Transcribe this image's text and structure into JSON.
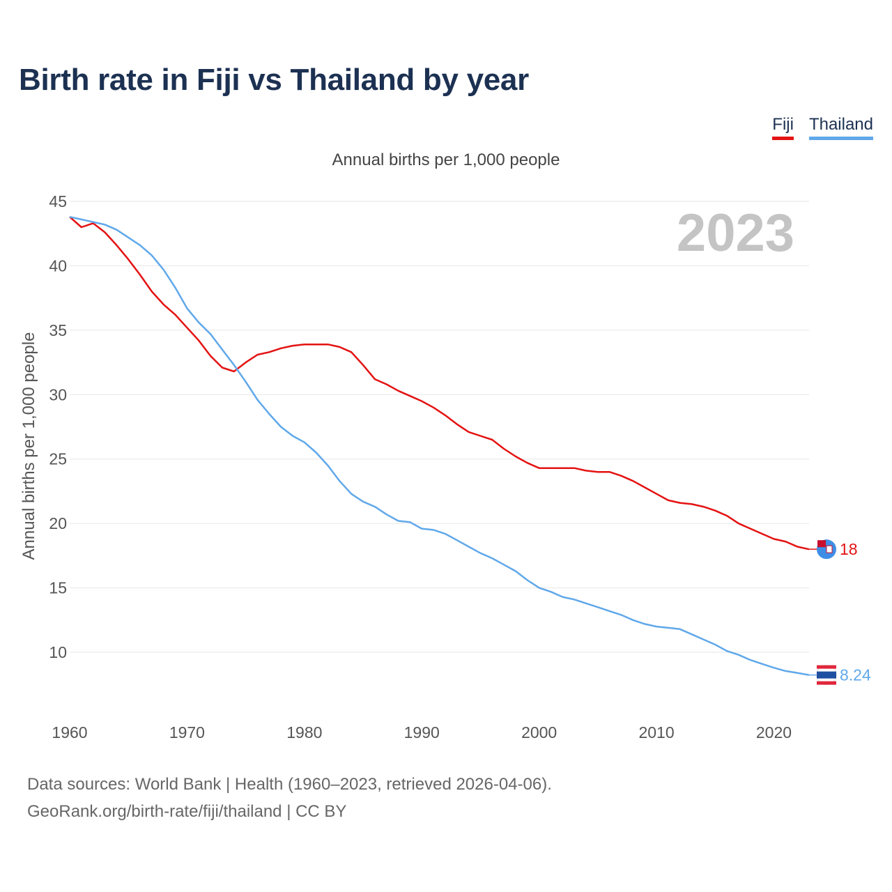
{
  "title": "Birth rate in Fiji vs Thailand by year",
  "subtitle": "Annual births per 1,000 people",
  "legend": [
    {
      "name": "Fiji",
      "color": "#e41212"
    },
    {
      "name": "Thailand",
      "color": "#60a8ea"
    }
  ],
  "footer": {
    "line1": "Data sources: World Bank | Health (1960–2023, retrieved 2026-04-06).",
    "line2": "GeoRank.org/birth-rate/fiji/thailand | CC BY"
  },
  "chart_data": {
    "type": "line",
    "title": "Birth rate in Fiji vs Thailand by year",
    "xlabel": "",
    "ylabel": "Annual births per 1,000 people",
    "year_watermark": "2023",
    "xlim": [
      1960,
      2023
    ],
    "ylim": [
      6,
      45
    ],
    "grid": true,
    "x_ticks": [
      1960,
      1970,
      1980,
      1990,
      2000,
      2010,
      2020
    ],
    "y_ticks": [
      10,
      15,
      20,
      25,
      30,
      35,
      40,
      45
    ],
    "x": [
      1960,
      1961,
      1962,
      1963,
      1964,
      1965,
      1966,
      1967,
      1968,
      1969,
      1970,
      1971,
      1972,
      1973,
      1974,
      1975,
      1976,
      1977,
      1978,
      1979,
      1980,
      1981,
      1982,
      1983,
      1984,
      1985,
      1986,
      1987,
      1988,
      1989,
      1990,
      1991,
      1992,
      1993,
      1994,
      1995,
      1996,
      1997,
      1998,
      1999,
      2000,
      2001,
      2002,
      2003,
      2004,
      2005,
      2006,
      2007,
      2008,
      2009,
      2010,
      2011,
      2012,
      2013,
      2014,
      2015,
      2016,
      2017,
      2018,
      2019,
      2020,
      2021,
      2022,
      2023
    ],
    "series": [
      {
        "name": "Fiji",
        "color": "#e41212",
        "end_label": "18",
        "values": [
          43.8,
          43.0,
          43.3,
          42.6,
          41.6,
          40.5,
          39.3,
          38.0,
          37.0,
          36.2,
          35.2,
          34.2,
          33.0,
          32.1,
          31.8,
          32.5,
          33.1,
          33.3,
          33.6,
          33.8,
          33.9,
          33.9,
          33.9,
          33.7,
          33.3,
          32.3,
          31.2,
          30.8,
          30.3,
          29.9,
          29.5,
          29.0,
          28.4,
          27.7,
          27.1,
          26.8,
          26.5,
          25.8,
          25.2,
          24.7,
          24.3,
          24.3,
          24.3,
          24.3,
          24.1,
          24.0,
          24.0,
          23.7,
          23.3,
          22.8,
          22.3,
          21.8,
          21.6,
          21.5,
          21.3,
          21.0,
          20.6,
          20.0,
          19.6,
          19.2,
          18.8,
          18.6,
          18.2,
          18.0
        ]
      },
      {
        "name": "Thailand",
        "color": "#60a8ea",
        "end_label": "8.24",
        "values": [
          43.8,
          43.6,
          43.4,
          43.2,
          42.8,
          42.2,
          41.6,
          40.8,
          39.7,
          38.3,
          36.7,
          35.6,
          34.7,
          33.5,
          32.3,
          31.0,
          29.6,
          28.5,
          27.5,
          26.8,
          26.3,
          25.5,
          24.5,
          23.3,
          22.3,
          21.7,
          21.3,
          20.7,
          20.2,
          20.1,
          19.6,
          19.5,
          19.2,
          18.7,
          18.2,
          17.7,
          17.3,
          16.8,
          16.3,
          15.6,
          15.0,
          14.7,
          14.3,
          14.1,
          13.8,
          13.5,
          13.2,
          12.9,
          12.5,
          12.2,
          12.0,
          11.9,
          11.8,
          11.4,
          11.0,
          10.6,
          10.1,
          9.8,
          9.4,
          9.1,
          8.8,
          8.55,
          8.4,
          8.24
        ]
      }
    ]
  }
}
